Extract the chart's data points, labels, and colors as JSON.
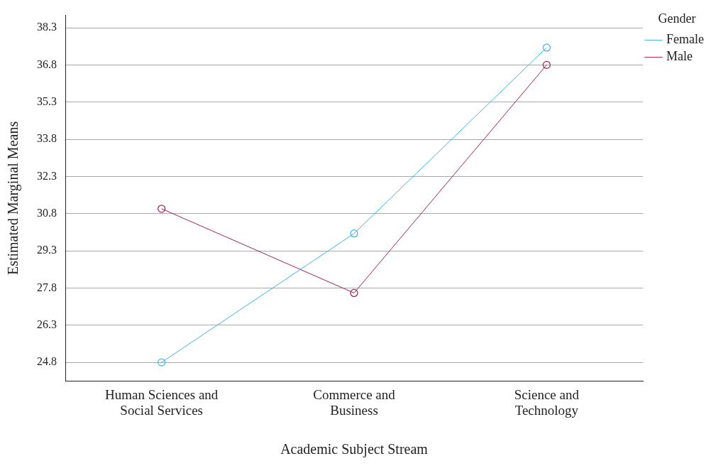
{
  "chart_data": {
    "type": "line",
    "xlabel": "Academic Subject Stream",
    "ylabel": "Estimated Marginal Means",
    "legend_title": "Gender",
    "categories": [
      "Human Sciences and Social Services",
      "Commerce and Business",
      "Science and Technology"
    ],
    "series": [
      {
        "name": "Female",
        "color": "#3fb0f0",
        "values": [
          24.8,
          30.0,
          37.5
        ]
      },
      {
        "name": "Male",
        "color": "#a0224f",
        "values": [
          31.0,
          27.6,
          36.8
        ]
      }
    ],
    "ylim": [
      24.05,
      38.8
    ],
    "yticks": [
      24.8,
      26.3,
      27.8,
      29.3,
      30.8,
      32.3,
      33.8,
      35.3,
      36.8,
      38.3
    ],
    "grid": "y",
    "legend": "top right",
    "marker": "circle",
    "line_style": "solid"
  }
}
